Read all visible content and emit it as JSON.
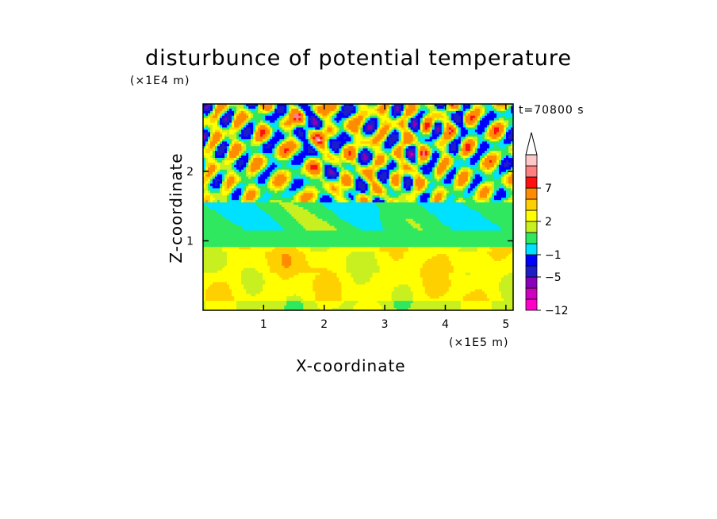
{
  "chart_data": {
    "type": "heatmap",
    "title": "disturbunce of potential temperature",
    "xlabel": "X-coordinate",
    "ylabel": "Z-coordinate",
    "x_unit": "(×1E5 m)",
    "y_unit": "(×1E4 m)",
    "time_label": "t=70800 s",
    "xlim": [
      0,
      5.12
    ],
    "ylim": [
      0,
      2.97
    ],
    "x_ticks": [
      1,
      2,
      3,
      4,
      5
    ],
    "y_ticks": [
      1,
      2
    ],
    "colorbar": {
      "levels": [
        -12,
        -10,
        -7,
        -5,
        -3,
        -1,
        0,
        1,
        2,
        3,
        4,
        7,
        8,
        9
      ],
      "tick_labels": [
        "-12",
        "-5",
        "-1",
        "2",
        "7"
      ],
      "tick_values": [
        -12,
        -5,
        -1,
        2,
        7
      ],
      "colors": [
        "#ff00c8",
        "#d000c0",
        "#8a00b8",
        "#1e1ec8",
        "#0000ff",
        "#00e0ff",
        "#30e860",
        "#c8f020",
        "#ffff00",
        "#ffd000",
        "#ff8c00",
        "#ff1010",
        "#ff8080",
        "#ffc8c8"
      ],
      "extend": "max"
    }
  }
}
